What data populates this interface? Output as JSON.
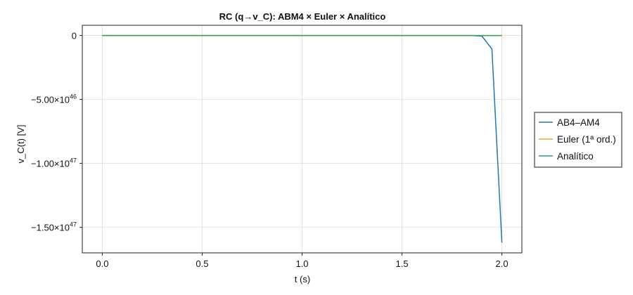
{
  "chart_data": {
    "type": "line",
    "title": "RC (q→v_C): ABM4 × Euler × Analítico",
    "xlabel": "t (s)",
    "ylabel": "v_C(t) [V]",
    "xlim": [
      -0.1,
      2.1
    ],
    "ylim": [
      -1.7e+47,
      8e+45
    ],
    "x_ticks": [
      {
        "value": 0.0,
        "label": "0.0"
      },
      {
        "value": 0.5,
        "label": "0.5"
      },
      {
        "value": 1.0,
        "label": "1.0"
      },
      {
        "value": 1.5,
        "label": "1.5"
      },
      {
        "value": 2.0,
        "label": "2.0"
      }
    ],
    "y_ticks": [
      {
        "value": 0,
        "mant": "0",
        "exp": ""
      },
      {
        "value": -5e+46,
        "mant": "−5.00×10",
        "exp": "46"
      },
      {
        "value": -1e+47,
        "mant": "−1.00×10",
        "exp": "47"
      },
      {
        "value": -1.5e+47,
        "mant": "−1.50×10",
        "exp": "47"
      }
    ],
    "grid": true,
    "legend_position": "right",
    "series": [
      {
        "name": "AB4–AM4",
        "color": "#1f77b4",
        "x": [
          0.0,
          0.5,
          1.0,
          1.5,
          1.8,
          1.85,
          1.9,
          1.95,
          2.0
        ],
        "y": [
          0,
          0,
          0,
          0,
          0,
          0,
          -5e+44,
          -1.05e+46,
          -1.62e+47
        ]
      },
      {
        "name": "Euler (1ª ord.)",
        "color": "#f5a623",
        "x": [
          0.0,
          0.5,
          1.0,
          1.5,
          2.0
        ],
        "y": [
          0,
          0,
          0,
          0,
          0
        ]
      },
      {
        "name": "Analítico",
        "color": "#2ca56a",
        "x": [
          0.0,
          0.5,
          1.0,
          1.5,
          2.0
        ],
        "y": [
          0,
          0,
          0,
          0,
          0
        ]
      }
    ]
  }
}
